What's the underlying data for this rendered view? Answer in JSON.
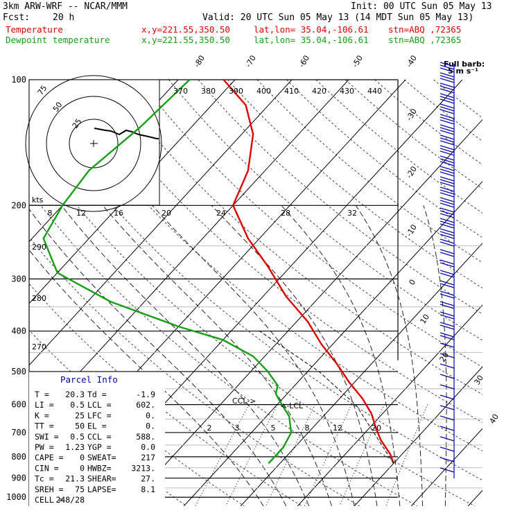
{
  "header": {
    "model": "3km ARW-WRF -- NCAR/MMM",
    "init": "Init: 00 UTC Sun 05 May 13",
    "fcst_label": "Fcst:",
    "fcst_value": "20 h",
    "valid": "Valid: 20 UTC Sun 05 May 13 (14 MDT Sun 05 May 13)",
    "temp_line": {
      "name": "Temperature",
      "xy": "x,y=221.55,350.50",
      "latlon": "lat,lon= 35.04,-106.61",
      "stn": "stn=ABQ ,72365",
      "color": "#e00000"
    },
    "dew_line": {
      "name": "Dewpoint temperature",
      "xy": "x,y=221.55,350.50",
      "latlon": "lat,lon= 35.04,-106.61",
      "stn": "stn=ABQ ,72365",
      "color": "#14a014"
    }
  },
  "barb_title": [
    "Full barb:",
    "5 m s⁻¹"
  ],
  "hodograph": {
    "axis_label": "kts",
    "ring_labels": [
      "75",
      "50",
      "25"
    ],
    "speed_ticks": [
      "8",
      "12",
      "16",
      "20",
      "24",
      "28",
      "32"
    ]
  },
  "theta_labels": [
    "370",
    "380",
    "390",
    "400",
    "410",
    "420",
    "430",
    "440"
  ],
  "theta_left": [
    "290",
    "280",
    "270"
  ],
  "mixing_ratio_labels": [
    "2",
    "3",
    "5",
    "8",
    "12",
    "20"
  ],
  "lcl_label": "LCL",
  "ccl_label": "CCL",
  "parcel": {
    "title": "Parcel Info",
    "rows": [
      [
        "T  =",
        "20.3",
        "Td =",
        "-1.9"
      ],
      [
        "LI =",
        "0.5",
        "LCL =",
        "602."
      ],
      [
        "K  =",
        "25",
        "LFC =",
        "0."
      ],
      [
        "TT =",
        "50",
        "EL =",
        "0."
      ],
      [
        "SWI =",
        "0.5",
        "CCL =",
        "588."
      ],
      [
        "PW =",
        "1.23",
        "YGP =",
        "0.0"
      ],
      [
        "CAPE =",
        "0",
        "SWEAT=",
        "217"
      ],
      [
        "CIN =",
        "0",
        "HWBZ=",
        "3213."
      ],
      [
        "Tc =",
        "21.3",
        "SHEAR=",
        "27."
      ],
      [
        "SREH =",
        "75",
        "LAPSE=",
        "8.1"
      ],
      [
        "CELL =",
        "248/28",
        "",
        ""
      ]
    ]
  },
  "chart_data": {
    "type": "line",
    "title": "",
    "ylabel": "",
    "pressure_levels": [
      100,
      200,
      300,
      400,
      500,
      600,
      700,
      800,
      900,
      1000
    ],
    "temperature_labels": [
      "-80",
      "-70",
      "-60",
      "-50",
      "-40",
      "-30",
      "-20",
      "-10",
      "0",
      "10",
      "20",
      "30",
      "40"
    ],
    "series": [
      {
        "name": "Temperature",
        "color": "#e00000",
        "p": [
          100,
          115,
          135,
          165,
          200,
          240,
          280,
          330,
          380,
          430,
          480,
          530,
          580,
          630,
          680,
          730,
          790,
          830
        ],
        "t": [
          -72,
          -64,
          -58,
          -53,
          -50,
          -42,
          -34,
          -26,
          -18,
          -12,
          -6,
          -1,
          4,
          8,
          11,
          14,
          18,
          20
        ]
      },
      {
        "name": "Dewpoint temperature",
        "color": "#14a014",
        "p": [
          100,
          130,
          165,
          200,
          240,
          290,
          340,
          390,
          420,
          460,
          500,
          540,
          565,
          590,
          640,
          700,
          760,
          830
        ],
        "t": [
          -78,
          -79,
          -81,
          -80,
          -78,
          -70,
          -56,
          -40,
          -30,
          -22,
          -17,
          -13,
          -12,
          -10,
          -6,
          -3,
          -2,
          -2
        ]
      }
    ]
  }
}
